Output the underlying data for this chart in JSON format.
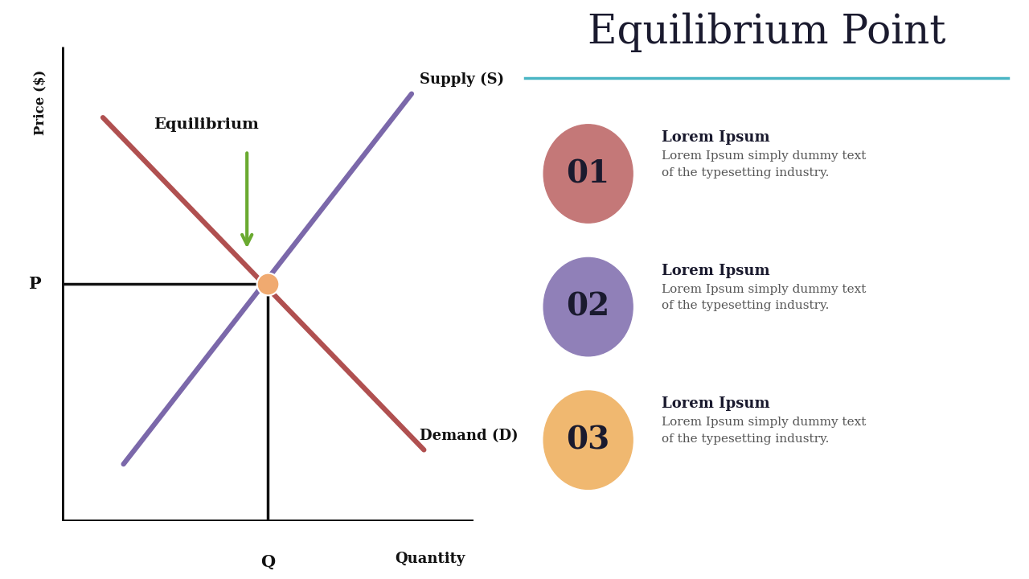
{
  "title": "Equilibrium Point",
  "title_underline_color": "#4ab5c4",
  "bg_color": "#ffffff",
  "supply_color": "#7b68aa",
  "demand_color": "#b05050",
  "eq_point_color": "#f0aa70",
  "eq_point_edge": "#ffffff",
  "axis_color": "#111111",
  "arrow_color": "#6aaa30",
  "equilibrium_label": "Equilibrium",
  "supply_label": "Supply (S)",
  "demand_label": "Demand (D)",
  "price_label": "Price ($)",
  "quantity_label": "Quantity",
  "p_label": "P",
  "q_label": "Q",
  "items": [
    {
      "number": "01",
      "circle_color": "#c47878",
      "title": "Lorem Ipsum",
      "body": "Lorem Ipsum simply dummy text\nof the typesetting industry."
    },
    {
      "number": "02",
      "circle_color": "#9080b8",
      "title": "Lorem Ipsum",
      "body": "Lorem Ipsum simply dummy text\nof the typesetting industry."
    },
    {
      "number": "03",
      "circle_color": "#f0b870",
      "title": "Lorem Ipsum",
      "body": "Lorem Ipsum simply dummy text\nof the typesetting industry."
    }
  ]
}
